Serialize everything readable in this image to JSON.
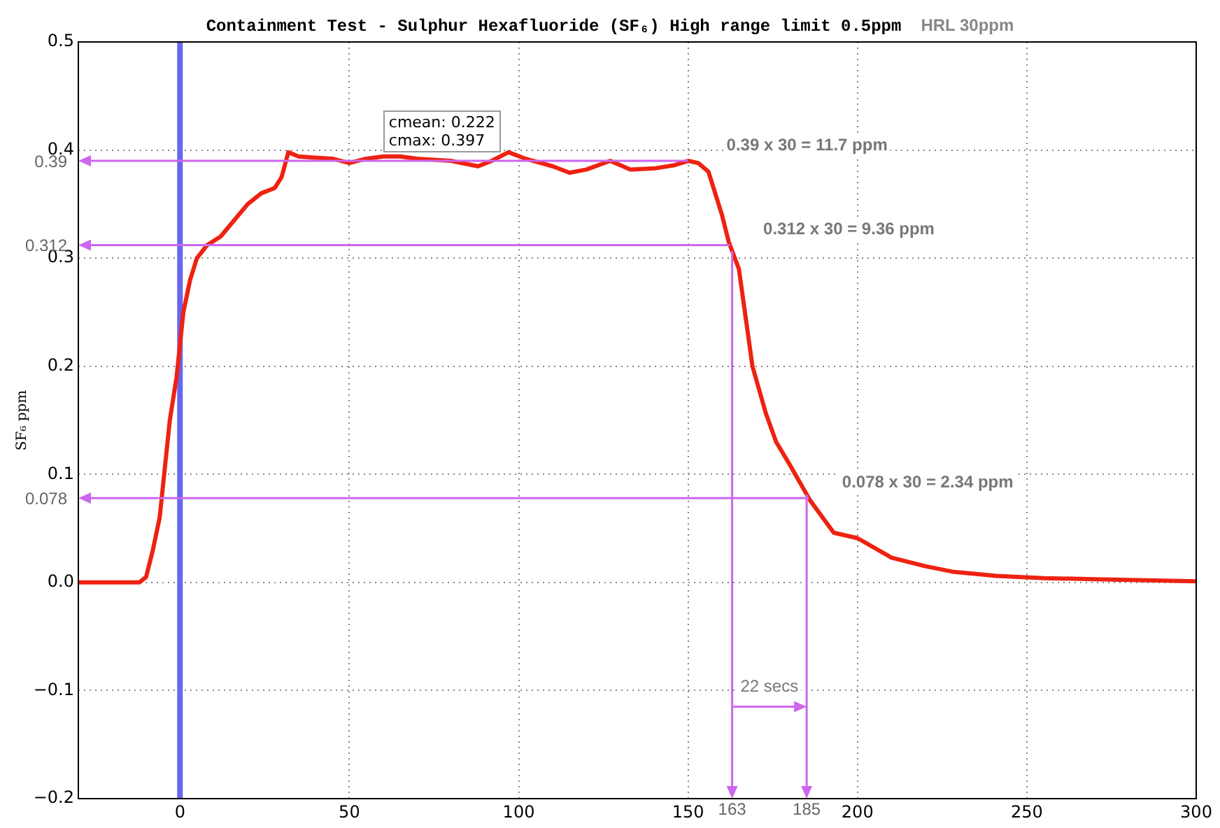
{
  "chart_data": {
    "type": "line",
    "title": "Containment Test - Sulphur Hexafluoride (SF₆) High range limit 0.5ppm",
    "ylabel": "SF₆ ppm",
    "x": [
      -30,
      -12,
      -10,
      -8,
      -6,
      -5,
      -4,
      -3,
      -2,
      -1,
      0,
      1,
      3,
      5,
      8,
      12,
      16,
      20,
      24,
      28,
      30,
      32,
      35,
      40,
      45,
      50,
      55,
      60,
      65,
      70,
      80,
      88,
      92,
      97,
      102,
      110,
      115,
      120,
      127,
      133,
      140,
      146,
      150,
      153,
      156,
      158,
      160,
      162,
      165,
      169,
      173,
      176,
      180,
      186,
      193,
      200,
      210,
      220,
      228,
      241,
      255,
      270,
      300
    ],
    "series": [
      {
        "color": "#ee2211",
        "values": [
          0,
          0,
          0.005,
          0.03,
          0.06,
          0.09,
          0.12,
          0.15,
          0.17,
          0.19,
          0.22,
          0.25,
          0.28,
          0.3,
          0.312,
          0.32,
          0.335,
          0.35,
          0.36,
          0.365,
          0.375,
          0.398,
          0.394,
          0.393,
          0.392,
          0.388,
          0.392,
          0.394,
          0.394,
          0.392,
          0.39,
          0.385,
          0.39,
          0.398,
          0.392,
          0.385,
          0.379,
          0.382,
          0.39,
          0.382,
          0.383,
          0.386,
          0.39,
          0.388,
          0.38,
          0.36,
          0.34,
          0.315,
          0.29,
          0.2,
          0.156,
          0.13,
          0.109,
          0.076,
          0.046,
          0.041,
          0.023,
          0.015,
          0.01,
          0.006,
          0.004,
          0.003,
          0.001
        ]
      }
    ],
    "xlim": [
      -30,
      300
    ],
    "xticks": [
      0,
      50,
      100,
      150,
      200,
      250,
      300
    ],
    "ylim": [
      -0.2,
      0.5
    ],
    "yticks": [
      {
        "value": -0.2,
        "label": "−0.2"
      },
      {
        "value": -0.1,
        "label": "−0.1"
      },
      {
        "value": 0,
        "label": "0.0"
      },
      0.1,
      0.2,
      0.3,
      0.4,
      0.5
    ],
    "grid": true,
    "legend": false,
    "marker": "none",
    "line_style": "solid",
    "ref_lines": [
      {
        "axis": "x",
        "value": 0,
        "color": "#6666ee"
      },
      {
        "axis": "y",
        "value": 0.39,
        "label": "0.39",
        "color": "#cc66ee"
      },
      {
        "axis": "y",
        "value": 0.312,
        "label": "0.312",
        "color": "#cc66ee"
      },
      {
        "axis": "y",
        "value": 0.078,
        "label": "0.078",
        "color": "#cc66ee"
      },
      {
        "axis": "x",
        "value": 163,
        "label": "163",
        "color": "#cc66ee"
      },
      {
        "axis": "x",
        "value": 185,
        "label": "185",
        "color": "#cc66ee"
      }
    ],
    "annotations": [
      "HRL 30ppm",
      "cmean: 0.222",
      "cmax: 0.397",
      "0.39 x 30 = 11.7 ppm",
      "0.312 x 30 = 9.36 ppm",
      "0.078 x 30 = 2.34 ppm",
      "22 secs"
    ]
  }
}
